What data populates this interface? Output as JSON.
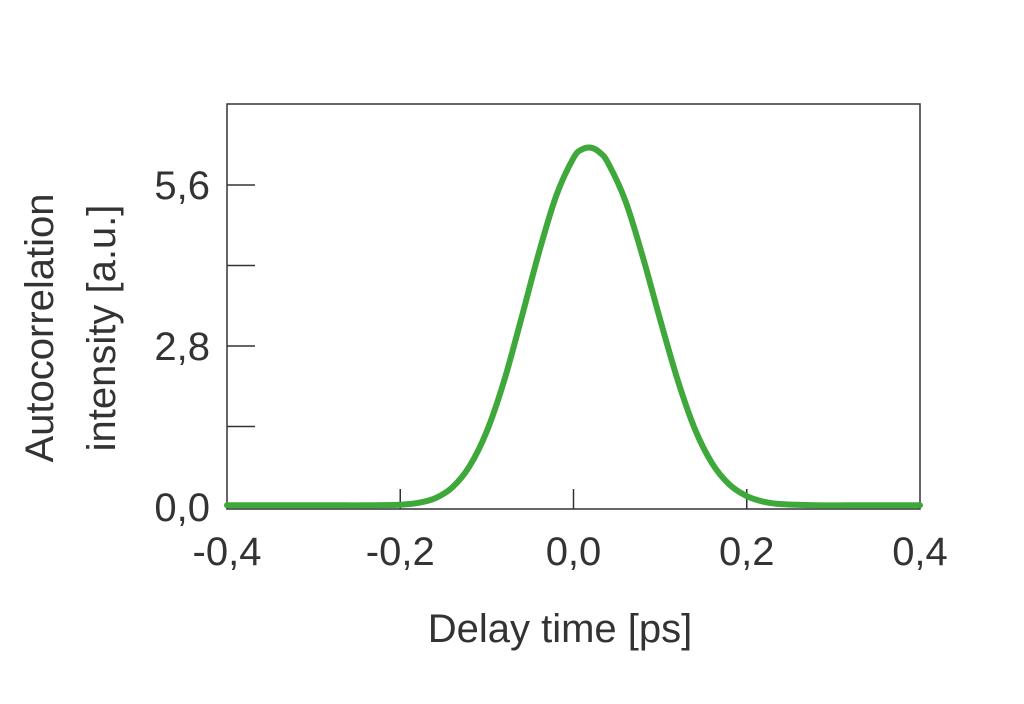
{
  "chart_data": {
    "type": "line",
    "title": "",
    "xlabel": "Delay time [ps]",
    "ylabel_lines": [
      "Autocorrelation",
      "intensity [a.u.]"
    ],
    "xlim": [
      -0.4,
      0.4
    ],
    "ylim": [
      0,
      6.95
    ],
    "x_ticks": [
      {
        "value": -0.4,
        "label": "-0,4"
      },
      {
        "value": -0.2,
        "label": "-0,2"
      },
      {
        "value": 0.0,
        "label": "0,0"
      },
      {
        "value": 0.2,
        "label": "0,2"
      },
      {
        "value": 0.4,
        "label": "0,4"
      }
    ],
    "y_ticks": [
      {
        "value": 0.0,
        "label": "0,0"
      },
      {
        "value": 1.4,
        "label": ""
      },
      {
        "value": 2.8,
        "label": "2,8"
      },
      {
        "value": 4.2,
        "label": ""
      },
      {
        "value": 5.6,
        "label": "5,6"
      }
    ],
    "grid": false,
    "color": "#3ea83a",
    "x": [
      -0.4,
      -0.36,
      -0.32,
      -0.28,
      -0.24,
      -0.2,
      -0.18,
      -0.16,
      -0.14,
      -0.12,
      -0.1,
      -0.08,
      -0.06,
      -0.04,
      -0.02,
      0.0,
      0.01,
      0.02,
      0.03,
      0.04,
      0.06,
      0.08,
      0.1,
      0.12,
      0.14,
      0.16,
      0.18,
      0.2,
      0.22,
      0.24,
      0.28,
      0.32,
      0.36,
      0.4
    ],
    "y": [
      0.03,
      0.03,
      0.03,
      0.03,
      0.03,
      0.04,
      0.07,
      0.15,
      0.34,
      0.71,
      1.32,
      2.2,
      3.29,
      4.42,
      5.41,
      6.07,
      6.22,
      6.25,
      6.17,
      5.98,
      5.32,
      4.35,
      3.26,
      2.22,
      1.36,
      0.76,
      0.39,
      0.19,
      0.09,
      0.05,
      0.03,
      0.03,
      0.03,
      0.03
    ]
  }
}
